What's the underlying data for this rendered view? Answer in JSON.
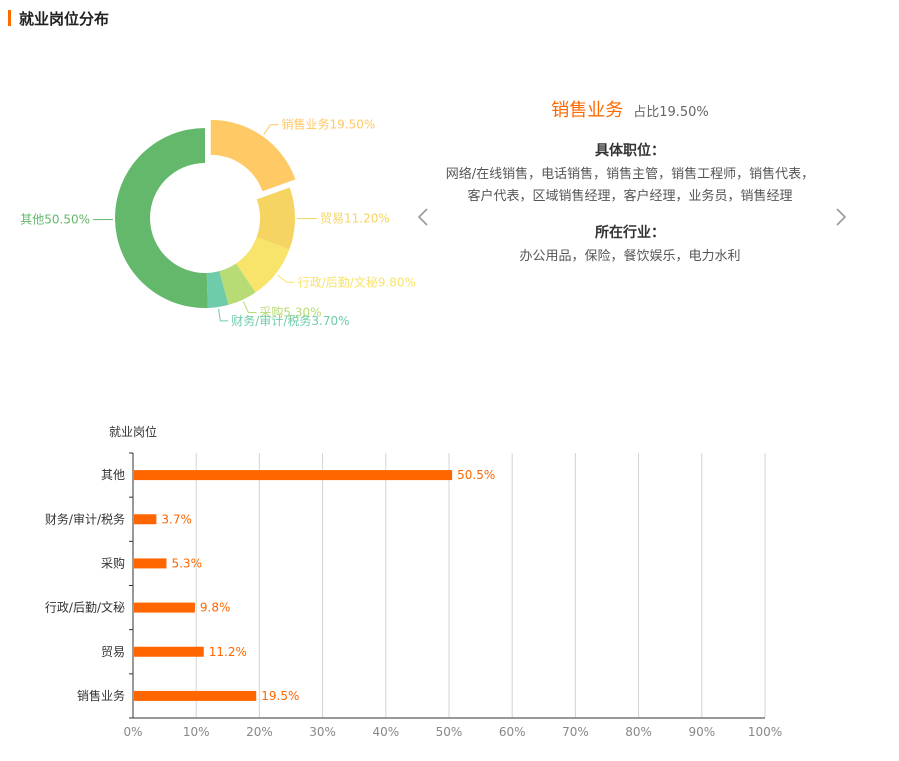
{
  "page": {
    "section_title": "就业岗位分布"
  },
  "detail": {
    "job_name": "销售业务",
    "share": "占比19.50%",
    "positions_title": "具体职位：",
    "positions_text": "网络/在线销售，电话销售，销售主管，销售工程师，销售代表，客户代表，区域销售经理，客户经理，业务员，销售经理",
    "industries_title": "所在行业：",
    "industries_text": "办公用品，保险，餐饮娱乐，电力水利"
  },
  "colors": {
    "accent": "#ff6a00",
    "bar": "#ff6600"
  },
  "icons": {
    "prev": "chevron-left-icon",
    "next": "chevron-right-icon"
  },
  "chart_data": [
    {
      "type": "pie",
      "variant": "donut",
      "slices": [
        {
          "label": "销售业务19.50%",
          "name": "销售业务",
          "value": 19.5,
          "color": "#ffc966",
          "selected": true
        },
        {
          "label": "贸易11.20%",
          "name": "贸易",
          "value": 11.2,
          "color": "#f5d461"
        },
        {
          "label": "行政/后勤/文秘9.80%",
          "name": "行政/后勤/文秘",
          "value": 9.8,
          "color": "#f8e36b"
        },
        {
          "label": "采购5.30%",
          "name": "采购",
          "value": 5.3,
          "color": "#b7dc75"
        },
        {
          "label": "财务/审计/税务3.70%",
          "name": "财务/审计/税务",
          "value": 3.7,
          "color": "#6fccaa"
        },
        {
          "label": "其他50.50%",
          "name": "其他",
          "value": 50.5,
          "color": "#63b86b"
        }
      ]
    },
    {
      "type": "bar",
      "orientation": "horizontal",
      "ylabel": "就业岗位",
      "categories": [
        "其他",
        "财务/审计/税务",
        "采购",
        "行政/后勤/文秘",
        "贸易",
        "销售业务"
      ],
      "values": [
        50.5,
        3.7,
        5.3,
        9.8,
        11.2,
        19.5
      ],
      "value_labels": [
        "50.5%",
        "3.7%",
        "5.3%",
        "9.8%",
        "11.2%",
        "19.5%"
      ],
      "xlim": [
        0,
        100
      ],
      "x_ticks": [
        "0%",
        "10%",
        "20%",
        "30%",
        "40%",
        "50%",
        "60%",
        "70%",
        "80%",
        "90%",
        "100%"
      ],
      "grid": true
    }
  ]
}
